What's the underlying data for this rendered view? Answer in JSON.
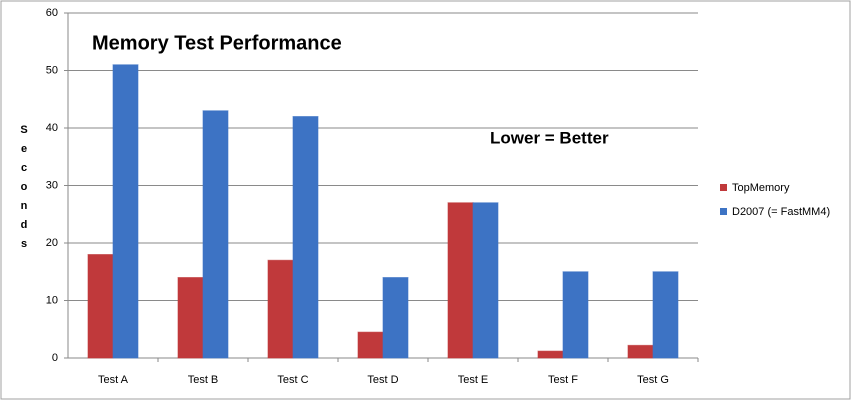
{
  "chart_data": {
    "type": "bar",
    "title": "Memory Test Performance",
    "annotation": "Lower = Better",
    "y_label": "Seconds",
    "categories": [
      "Test A",
      "Test B",
      "Test C",
      "Test D",
      "Test E",
      "Test F",
      "Test G"
    ],
    "series": [
      {
        "name": "TopMemory",
        "color": "#c0393b",
        "values": [
          18,
          14,
          17,
          4.5,
          27,
          1.2,
          2.2
        ]
      },
      {
        "name": "D2007 (= FastMM4)",
        "color": "#3d73c4",
        "values": [
          51,
          43,
          42,
          14,
          27,
          15,
          15
        ]
      }
    ],
    "ylim": [
      0,
      60
    ],
    "yticks": [
      0,
      10,
      20,
      30,
      40,
      50,
      60
    ],
    "grid": true,
    "legend": "right"
  }
}
